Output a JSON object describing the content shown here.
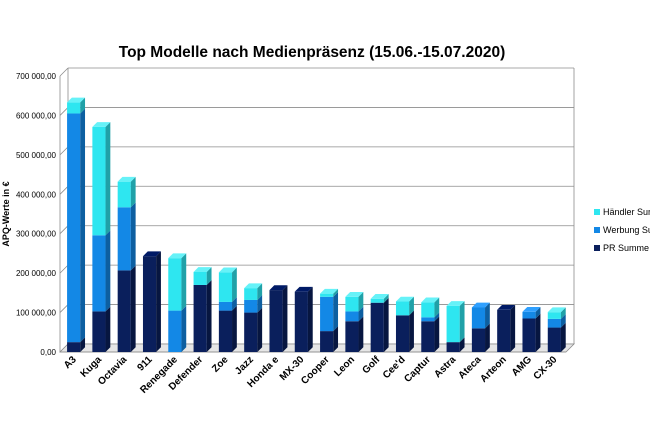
{
  "chart_data": {
    "type": "bar",
    "stacked": true,
    "title": "Top Modelle nach Medienpräsenz (15.06.-15.07.2020)",
    "xlabel": "",
    "ylabel": "APQ-Werte in €",
    "ylim": [
      0,
      700000
    ],
    "yticks": [
      {
        "value": 0,
        "label": "0,00"
      },
      {
        "value": 100000,
        "label": "100 000,00"
      },
      {
        "value": 200000,
        "label": "200 000,00"
      },
      {
        "value": 300000,
        "label": "300 000,00"
      },
      {
        "value": 400000,
        "label": "400 000,00"
      },
      {
        "value": 500000,
        "label": "500 000,00"
      },
      {
        "value": 600000,
        "label": "600 000,00"
      },
      {
        "value": 700000,
        "label": "700 000,00"
      }
    ],
    "grid": true,
    "legend_position": "right",
    "categories": [
      "A3",
      "Kuga",
      "Octavia",
      "911",
      "Renegade",
      "Defender",
      "Zoe",
      "Jazz",
      "Honda e",
      "MX-30",
      "Cooper",
      "Leon",
      "Golf",
      "Cee'd",
      "Captur",
      "Astra",
      "Ateca",
      "Arteon",
      "AMG",
      "CX-30"
    ],
    "series": [
      {
        "name": "PR Summe",
        "color": "#0a1f5c",
        "top_color": "#001a66",
        "values": [
          25000,
          103000,
          207000,
          243000,
          0,
          170000,
          105000,
          100000,
          157000,
          153000,
          53000,
          78000,
          125000,
          93000,
          78000,
          25000,
          60000,
          107000,
          85000,
          62000
        ]
      },
      {
        "name": "Werbung Sur",
        "color": "#1388e6",
        "top_color": "#2fa0ff",
        "values": [
          580000,
          193000,
          160000,
          0,
          105000,
          0,
          22000,
          32000,
          0,
          0,
          87000,
          25000,
          0,
          0,
          10000,
          0,
          53000,
          0,
          17000,
          22000
        ]
      },
      {
        "name": "Händler Sum",
        "color": "#2ee6f0",
        "top_color": "#66f2f8",
        "values": [
          28000,
          275000,
          65000,
          0,
          133000,
          33000,
          75000,
          30000,
          0,
          0,
          8000,
          37000,
          10000,
          35000,
          38000,
          92000,
          0,
          0,
          0,
          17000
        ]
      }
    ]
  }
}
